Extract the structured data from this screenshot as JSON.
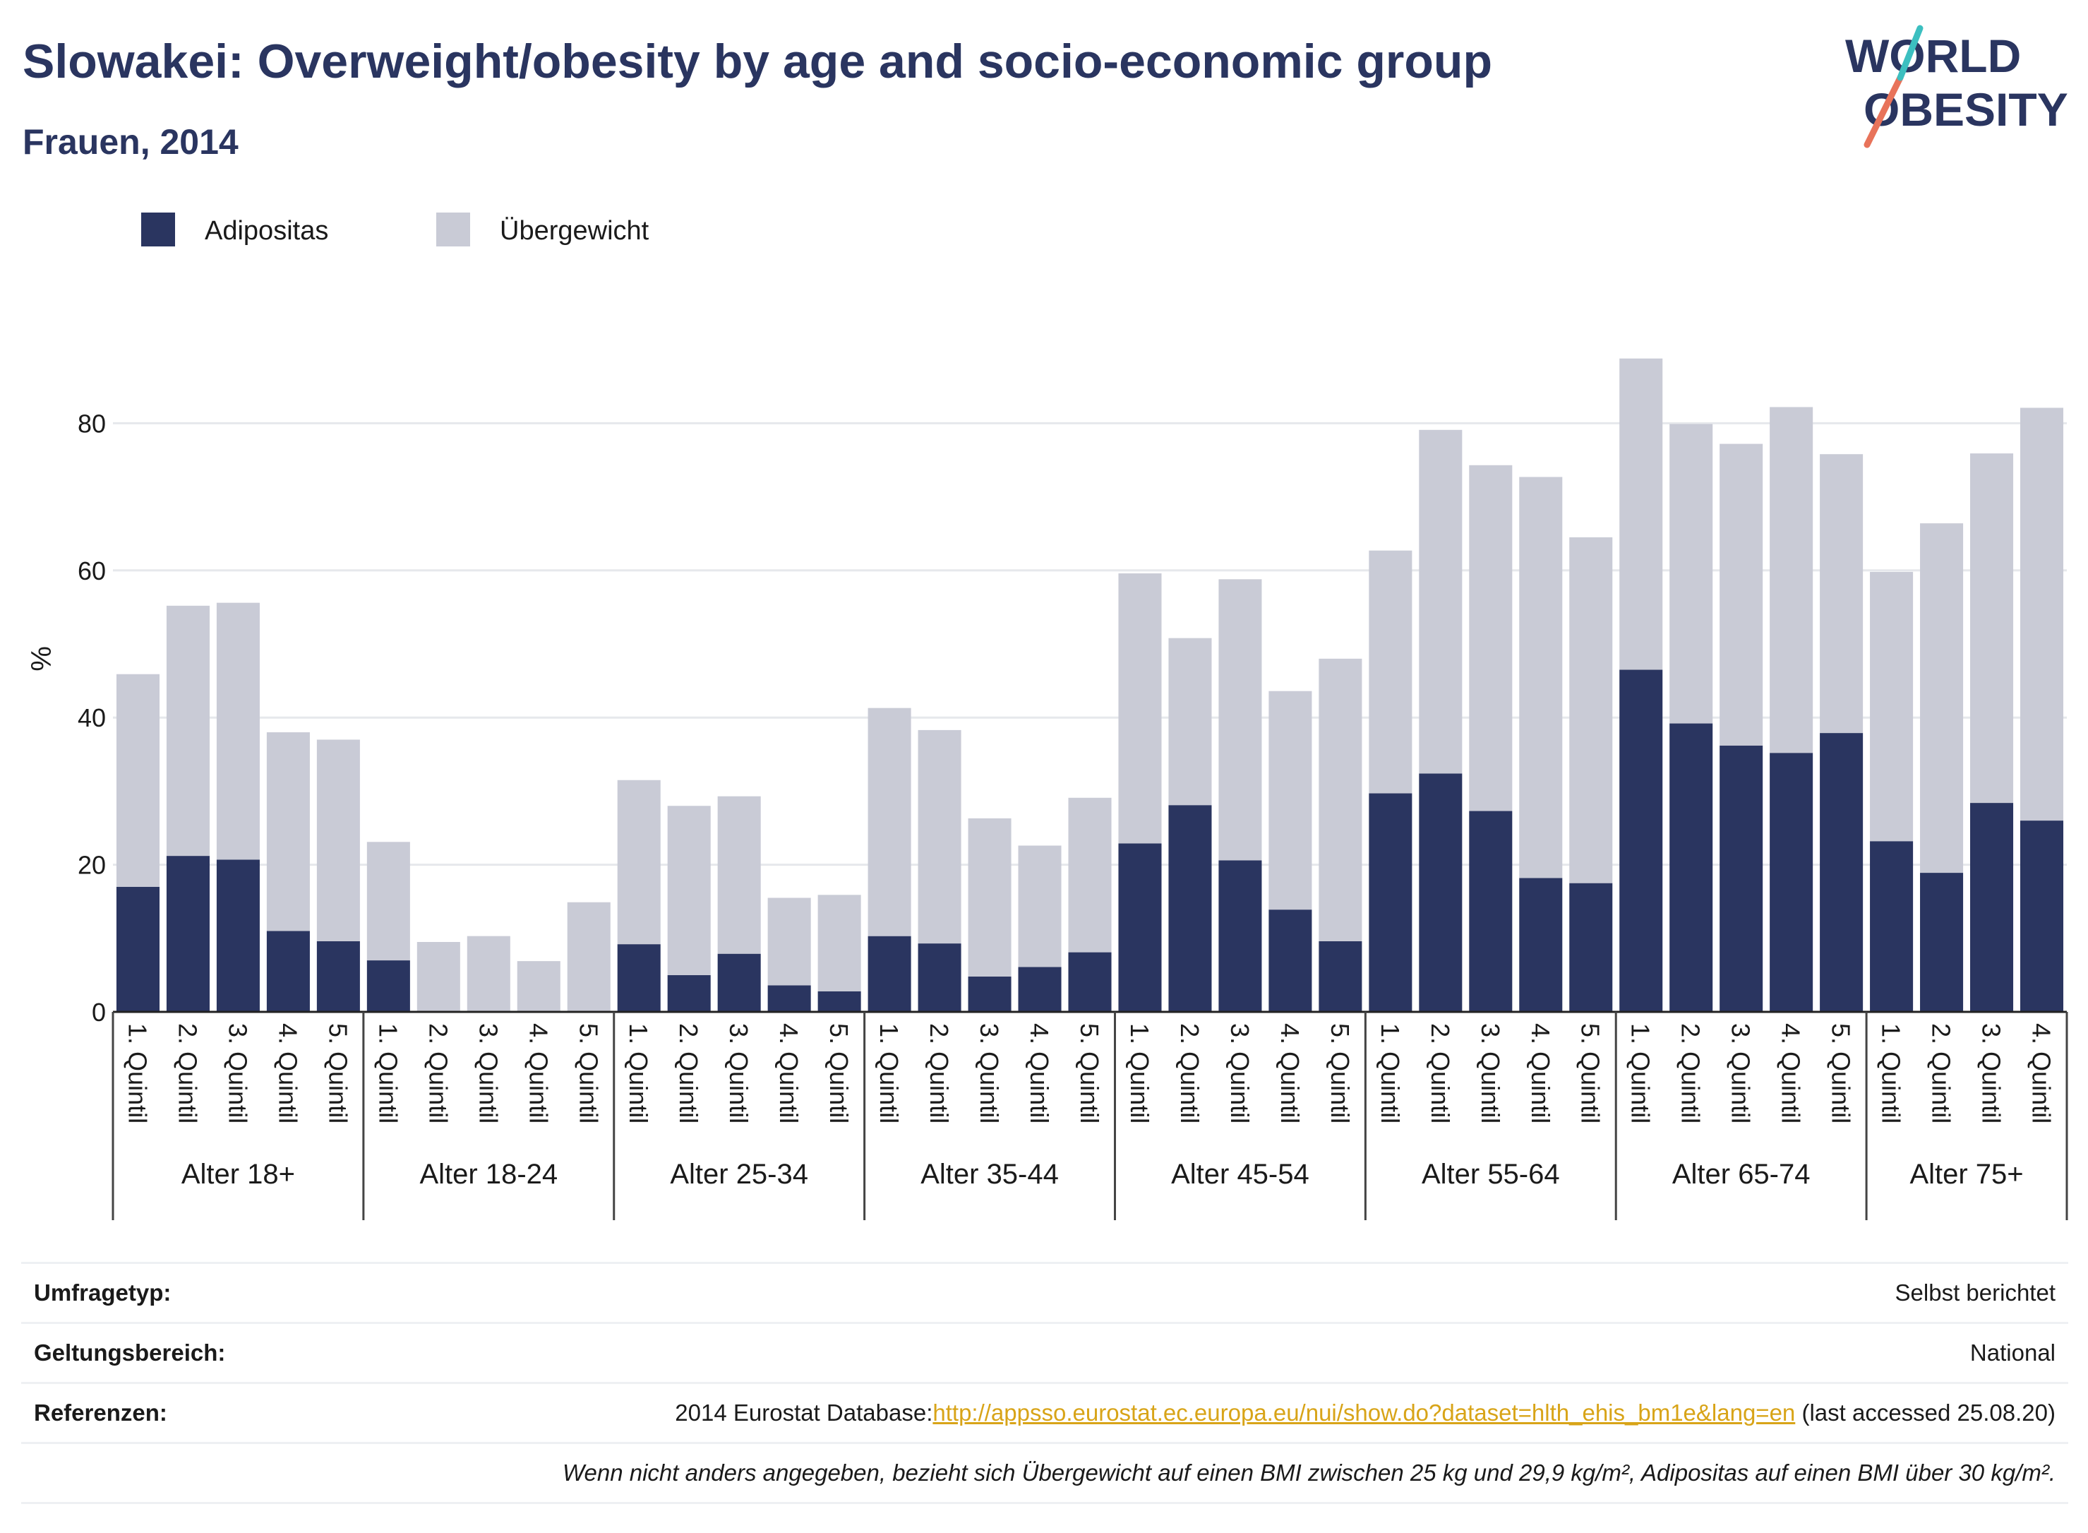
{
  "title": "Slowakei: Overweight/obesity by age and socio-economic group",
  "subtitle": "Frauen, 2014",
  "logo": {
    "line1": "WORLD",
    "line2": "OBESITY",
    "color": "#2a3560",
    "slash_colors": [
      "#e8735a",
      "#3cbfc0"
    ]
  },
  "chart_data": {
    "type": "bar",
    "stacked": true,
    "ylabel": "%",
    "ylim": [
      0,
      92
    ],
    "yticks": [
      0,
      20,
      40,
      60,
      80
    ],
    "grid": true,
    "legend_position": "top-left",
    "groups": [
      {
        "label": "Alter 18+",
        "categories": [
          "1. Quintil",
          "2. Quintil",
          "3. Quintil",
          "4. Quintil",
          "5. Quintil"
        ]
      },
      {
        "label": "Alter 18-24",
        "categories": [
          "1. Quintil",
          "2. Quintil",
          "3. Quintil",
          "4. Quintil",
          "5. Quintil"
        ]
      },
      {
        "label": "Alter 25-34",
        "categories": [
          "1. Quintil",
          "2. Quintil",
          "3. Quintil",
          "4. Quintil",
          "5. Quintil"
        ]
      },
      {
        "label": "Alter 35-44",
        "categories": [
          "1. Quintil",
          "2. Quintil",
          "3. Quintil",
          "4. Quintil",
          "5. Quintil"
        ]
      },
      {
        "label": "Alter 45-54",
        "categories": [
          "1. Quintil",
          "2. Quintil",
          "3. Quintil",
          "4. Quintil",
          "5. Quintil"
        ]
      },
      {
        "label": "Alter 55-64",
        "categories": [
          "1. Quintil",
          "2. Quintil",
          "3. Quintil",
          "4. Quintil",
          "5. Quintil"
        ]
      },
      {
        "label": "Alter 65-74",
        "categories": [
          "1. Quintil",
          "2. Quintil",
          "3. Quintil",
          "4. Quintil",
          "5. Quintil"
        ]
      },
      {
        "label": "Alter 75+",
        "categories": [
          "1. Quintil",
          "2. Quintil",
          "3. Quintil",
          "4. Quintil"
        ]
      }
    ],
    "series": [
      {
        "name": "Adipositas",
        "color": "#2a3560",
        "values": [
          17.0,
          21.2,
          20.7,
          11.0,
          9.6,
          7.0,
          0,
          0,
          0,
          0,
          9.2,
          5.0,
          7.9,
          3.6,
          2.8,
          10.3,
          9.3,
          4.8,
          6.1,
          8.1,
          22.9,
          28.1,
          20.6,
          13.9,
          9.6,
          29.7,
          32.4,
          27.3,
          18.2,
          17.5,
          46.5,
          39.2,
          36.2,
          35.2,
          37.9,
          23.2,
          18.9,
          28.4,
          26.0
        ]
      },
      {
        "name": "Übergewicht",
        "color": "#c9cbd6",
        "values": [
          28.9,
          34.0,
          34.9,
          27.0,
          27.4,
          16.1,
          9.5,
          10.3,
          6.9,
          14.9,
          22.3,
          23.0,
          21.4,
          11.9,
          13.1,
          31.0,
          29.0,
          21.5,
          16.5,
          21.0,
          36.7,
          22.7,
          38.2,
          29.7,
          38.4,
          33.0,
          46.7,
          47.0,
          54.5,
          47.0,
          42.3,
          40.7,
          41.0,
          47.0,
          37.9,
          36.6,
          47.5,
          47.5,
          56.1
        ]
      }
    ]
  },
  "info": {
    "survey_label": "Umfragetyp:",
    "survey_value": "Selbst berichtet",
    "scope_label": "Geltungsbereich:",
    "scope_value": "National",
    "ref_label": "Referenzen:",
    "ref_prefix": "2014 Eurostat Database:",
    "ref_link": "http://appsso.eurostat.ec.europa.eu/nui/show.do?dataset=hlth_ehis_bm1e&lang=en",
    "ref_suffix": " (last accessed 25.08.20)",
    "note": "Wenn nicht anders angegeben, bezieht sich Übergewicht auf einen BMI zwischen 25 kg und 29,9 kg/m², Adipositas auf einen BMI über 30 kg/m²."
  }
}
